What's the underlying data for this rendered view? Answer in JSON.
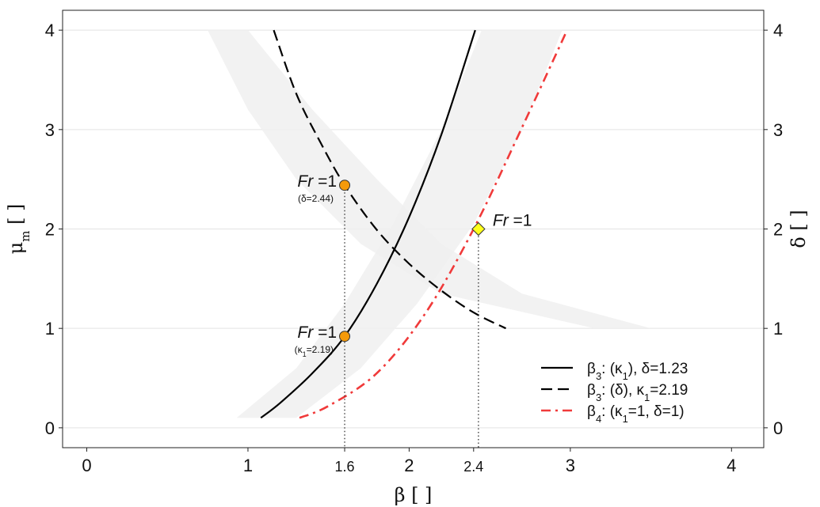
{
  "chart_data": {
    "type": "line",
    "xlabel": "β [ ]",
    "ylabel_left": "μm [ ]",
    "ylabel_right": "δ [ ]",
    "xlim": [
      -0.15,
      4.2
    ],
    "ylim": [
      -0.2,
      4.2
    ],
    "x_ticks": [
      0,
      1,
      1.6,
      2,
      2.4,
      3,
      4
    ],
    "x_tick_labels": [
      "0",
      "1",
      "1.6",
      "2",
      "2.4",
      "3",
      "4"
    ],
    "y_ticks": [
      0,
      1,
      2,
      3,
      4
    ],
    "y_tick_labels": [
      "0",
      "1",
      "2",
      "3",
      "4"
    ],
    "right_ticks": [
      0,
      1,
      2,
      3,
      4
    ],
    "right_tick_labels": [
      "0",
      "1",
      "2",
      "3",
      "4"
    ],
    "grid": "horizontal",
    "legend_position": "bottom-right",
    "bands": [
      {
        "name": "kappa-band",
        "color": "#f0f0f0",
        "lower": [
          [
            0.93,
            0.1
          ],
          [
            1.3,
            0.6
          ],
          [
            1.6,
            1.25
          ],
          [
            1.9,
            2.05
          ],
          [
            2.2,
            3.0
          ],
          [
            2.45,
            4.0
          ]
        ],
        "upper": [
          [
            1.3,
            0.1
          ],
          [
            1.7,
            0.6
          ],
          [
            2.05,
            1.25
          ],
          [
            2.4,
            2.05
          ],
          [
            2.7,
            3.0
          ],
          [
            2.95,
            4.0
          ]
        ]
      },
      {
        "name": "delta-band",
        "color": "#f0f0f0",
        "lower": [
          [
            0.75,
            4.0
          ],
          [
            1.0,
            3.2
          ],
          [
            1.3,
            2.5
          ],
          [
            1.7,
            1.85
          ],
          [
            2.2,
            1.35
          ],
          [
            3.15,
            1.0
          ]
        ],
        "upper": [
          [
            1.0,
            4.0
          ],
          [
            1.4,
            3.2
          ],
          [
            1.8,
            2.5
          ],
          [
            2.2,
            1.85
          ],
          [
            2.7,
            1.35
          ],
          [
            3.5,
            1.0
          ]
        ]
      }
    ],
    "series": [
      {
        "name": "β3: (κ1), δ=1.23",
        "style": "solid",
        "color": "#000000",
        "x": [
          1.08,
          1.2,
          1.4,
          1.6,
          1.8,
          2.0,
          2.2,
          2.41
        ],
        "y": [
          0.1,
          0.25,
          0.55,
          0.92,
          1.45,
          2.12,
          2.95,
          4.0
        ]
      },
      {
        "name": "β3: (δ), κ1=2.19",
        "style": "dashed",
        "color": "#000000",
        "x": [
          1.16,
          1.3,
          1.45,
          1.6,
          1.8,
          2.0,
          2.2,
          2.4,
          2.6
        ],
        "y": [
          4.0,
          3.36,
          2.87,
          2.44,
          1.99,
          1.65,
          1.38,
          1.16,
          1.0
        ]
      },
      {
        "name": "β4: (κ1=1, δ=1)",
        "style": "dashdot",
        "color": "#f03a3a",
        "x": [
          1.32,
          1.5,
          1.8,
          2.1,
          2.4,
          2.7,
          2.98
        ],
        "y": [
          0.1,
          0.22,
          0.55,
          1.15,
          2.0,
          3.02,
          4.0
        ]
      }
    ],
    "points": [
      {
        "name": "fr-point-delta",
        "x": 1.6,
        "y": 2.44,
        "marker": "circle",
        "color": "#f59a0a"
      },
      {
        "name": "fr-point-kappa",
        "x": 1.6,
        "y": 0.92,
        "marker": "circle",
        "color": "#f59a0a"
      },
      {
        "name": "fr-point-beta4",
        "x": 2.43,
        "y": 2.0,
        "marker": "diamond",
        "color": "#ffff1a"
      }
    ],
    "guides": [
      {
        "x": 1.6,
        "y_top": 2.44
      },
      {
        "x": 2.43,
        "y_top": 2.0
      }
    ],
    "annotations": [
      {
        "name": "annotation-fr-delta",
        "main": "Fr =1",
        "sub": "(δ=2.44)",
        "x": 1.6,
        "y": 2.44,
        "side": "left"
      },
      {
        "name": "annotation-fr-kappa",
        "main": "Fr =1",
        "sub": "(κ1=2.19)",
        "x": 1.6,
        "y": 0.92,
        "side": "left"
      },
      {
        "name": "annotation-fr-beta4",
        "main": "Fr =1",
        "sub": "",
        "x": 2.43,
        "y": 2.0,
        "side": "right"
      }
    ]
  }
}
